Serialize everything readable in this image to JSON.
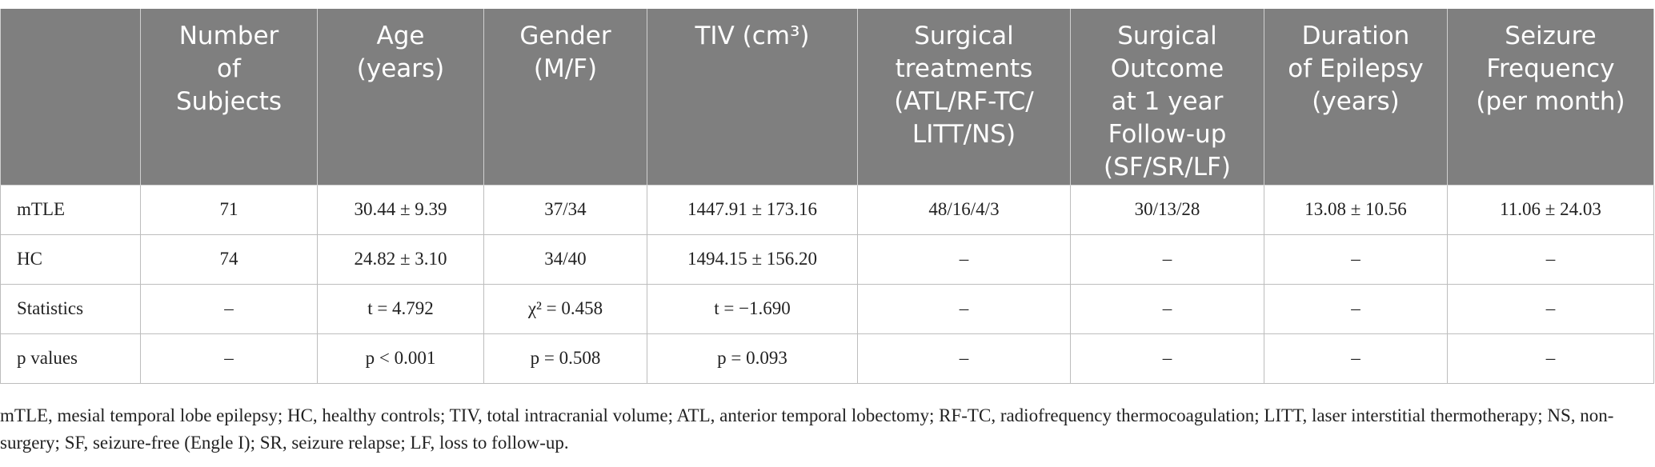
{
  "table": {
    "header": [
      [],
      [
        "Number",
        "of",
        "Subjects"
      ],
      [
        "Age",
        "(years)"
      ],
      [
        "Gender",
        "(M/F)"
      ],
      [
        "TIV (cm³)"
      ],
      [
        "Surgical",
        "treatments",
        "(ATL/RF-TC/",
        "LITT/NS)"
      ],
      [
        "Surgical",
        "Outcome",
        "at 1 year",
        "Follow-up",
        "(SF/SR/LF)"
      ],
      [
        "Duration",
        "of Epilepsy",
        "(years)"
      ],
      [
        "Seizure",
        "Frequency",
        "(per month)"
      ]
    ],
    "rows": [
      [
        "mTLE",
        "71",
        "30.44 ± 9.39",
        "37/34",
        "1447.91 ± 173.16",
        "48/16/4/3",
        "30/13/28",
        "13.08 ± 10.56",
        "11.06 ± 24.03"
      ],
      [
        "HC",
        "74",
        "24.82 ± 3.10",
        "34/40",
        "1494.15 ± 156.20",
        "–",
        "–",
        "–",
        "–"
      ],
      [
        "Statistics",
        "–",
        "t = 4.792",
        "χ² = 0.458",
        "t = −1.690",
        "–",
        "–",
        "–",
        "–"
      ],
      [
        "p values",
        "–",
        "p < 0.001",
        "p = 0.508",
        "p = 0.093",
        "–",
        "–",
        "–",
        "–"
      ]
    ]
  },
  "footnote": "mTLE, mesial temporal lobe epilepsy; HC, healthy controls; TIV, total intracranial volume; ATL, anterior temporal lobectomy; RF-TC, radiofrequency thermocoagulation; LITT, laser interstitial thermotherapy; NS, non-surgery; SF, seizure-free (Engle I); SR, seizure relapse; LF, loss to follow-up."
}
